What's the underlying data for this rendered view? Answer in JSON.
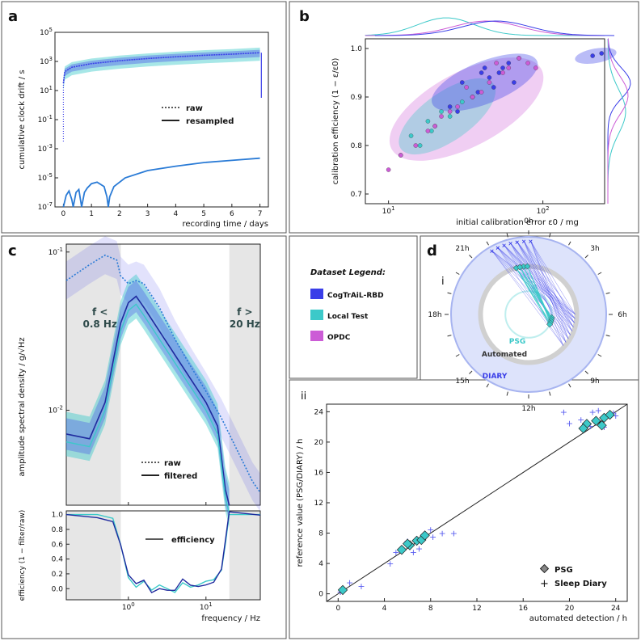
{
  "panels": {
    "a": {
      "label": "a"
    },
    "b": {
      "label": "b"
    },
    "c": {
      "label": "c"
    },
    "d": {
      "label": "d"
    }
  },
  "colors": {
    "cogtrail": "#3a3ee8",
    "local": "#3cc9c9",
    "opdc": "#cc5cd6",
    "navy": "#1f2a9e",
    "grey": "#999999"
  },
  "chart_data": [
    {
      "id": "a",
      "type": "line",
      "xlabel": "recording time / days",
      "ylabel": "cumulative clock drift / s",
      "xlim": [
        -0.3,
        7.3
      ],
      "ylim_log10": [
        -7,
        5
      ],
      "xticks": [
        "0",
        "1",
        "2",
        "3",
        "4",
        "5",
        "6",
        "7"
      ],
      "yticks": [
        "10^-7",
        "10^-5",
        "10^-3",
        "10^-1",
        "10^1",
        "10^3",
        "10^5"
      ],
      "legend": [
        {
          "style": "dotted",
          "label": "raw"
        },
        {
          "style": "solid",
          "label": "resampled"
        }
      ],
      "series": [
        {
          "name": "raw (drift envelope)",
          "x": [
            0,
            0.05,
            0.3,
            1,
            2,
            3,
            4,
            5,
            6,
            7
          ],
          "log10_y": [
            1.5,
            2.3,
            2.6,
            2.85,
            3.05,
            3.2,
            3.32,
            3.42,
            3.5,
            3.6
          ]
        },
        {
          "name": "resampled",
          "x": [
            0,
            0.1,
            0.2,
            0.3,
            0.35,
            0.45,
            0.55,
            0.65,
            0.75,
            0.85,
            1,
            1.2,
            1.45,
            1.55,
            1.6,
            1.65,
            1.8,
            2.2,
            3,
            4,
            5,
            6,
            7
          ],
          "log10_y": [
            -7,
            -6.2,
            -5.9,
            -6.5,
            -7,
            -6,
            -5.8,
            -7,
            -6,
            -5.7,
            -5.4,
            -5.3,
            -5.6,
            -6.3,
            -7,
            -6.3,
            -5.6,
            -5.0,
            -4.5,
            -4.2,
            -3.95,
            -3.8,
            -3.65
          ]
        }
      ]
    },
    {
      "id": "b",
      "type": "scatter",
      "xlabel": "initial calibration error ε0 / mg",
      "ylabel": "calibration efficiency (1 − ε/ε0)",
      "xlim_log10": [
        0.85,
        2.4
      ],
      "ylim": [
        0.68,
        1.02
      ],
      "xticks": [
        "10^1",
        "10^2"
      ],
      "yticks": [
        "0.7",
        "0.8",
        "0.9",
        "1.0"
      ],
      "series": [
        {
          "name": "CogTrAiL-RBD",
          "points": [
            [
              30,
              0.93
            ],
            [
              40,
              0.95
            ],
            [
              55,
              0.96
            ],
            [
              35,
              0.9
            ],
            [
              48,
              0.92
            ],
            [
              60,
              0.97
            ],
            [
              25,
              0.88
            ],
            [
              45,
              0.94
            ],
            [
              70,
              0.98
            ],
            [
              38,
              0.91
            ],
            [
              52,
              0.95
            ],
            [
              28,
              0.87
            ],
            [
              210,
              0.985
            ],
            [
              240,
              0.99
            ],
            [
              42,
              0.96
            ],
            [
              65,
              0.93
            ]
          ]
        },
        {
          "name": "Local Test",
          "points": [
            [
              14,
              0.82
            ],
            [
              18,
              0.85
            ],
            [
              22,
              0.87
            ],
            [
              16,
              0.8
            ],
            [
              25,
              0.86
            ],
            [
              30,
              0.89
            ],
            [
              20,
              0.84
            ],
            [
              12,
              0.78
            ],
            [
              35,
              0.9
            ],
            [
              19,
              0.83
            ]
          ]
        },
        {
          "name": "OPDC",
          "points": [
            [
              12,
              0.78
            ],
            [
              15,
              0.8
            ],
            [
              20,
              0.84
            ],
            [
              25,
              0.87
            ],
            [
              35,
              0.9
            ],
            [
              45,
              0.93
            ],
            [
              60,
              0.96
            ],
            [
              80,
              0.97
            ],
            [
              10,
              0.75
            ],
            [
              18,
              0.83
            ],
            [
              28,
              0.88
            ],
            [
              40,
              0.91
            ],
            [
              55,
              0.95
            ],
            [
              70,
              0.98
            ],
            [
              22,
              0.86
            ],
            [
              32,
              0.92
            ],
            [
              90,
              0.96
            ],
            [
              50,
              0.97
            ]
          ]
        }
      ]
    },
    {
      "id": "c",
      "type": "line",
      "xlabel": "frequency / Hz",
      "ylabel": "amplitude spectral density / g/√Hz",
      "ylabel_bottom": "efficiency (1 − filter/raw)",
      "xlim_log10": [
        -0.8,
        1.7
      ],
      "ylim_log10": [
        -2.6,
        -0.95
      ],
      "xticks": [
        "10^0",
        "10^1"
      ],
      "yticks": [
        "10^-2",
        "10^-1"
      ],
      "bottom_yticks": [
        "0.0",
        "0.2",
        "0.4",
        "0.6",
        "0.8",
        "1.0"
      ],
      "bands": [
        {
          "label": "f <\n0.8 Hz",
          "side": "low",
          "value": 0.8
        },
        {
          "label": "f >\n20 Hz",
          "side": "high",
          "value": 20
        }
      ],
      "legend": [
        {
          "style": "dotted",
          "label": "raw"
        },
        {
          "style": "solid",
          "label": "filtered"
        }
      ],
      "legend_bottom": [
        {
          "style": "solid",
          "label": "efficiency"
        }
      ],
      "series": [
        {
          "name": "raw",
          "log10_f": [
            -0.8,
            -0.5,
            -0.3,
            -0.15,
            -0.1,
            0,
            0.1,
            0.2,
            0.4,
            0.6,
            0.8,
            1.0,
            1.2,
            1.4,
            1.6,
            1.7
          ],
          "log10_asd": [
            -1.18,
            -1.08,
            -1.02,
            -1.05,
            -1.15,
            -1.2,
            -1.18,
            -1.2,
            -1.35,
            -1.55,
            -1.72,
            -1.88,
            -2.05,
            -2.25,
            -2.45,
            -2.52
          ]
        },
        {
          "name": "filtered",
          "log10_f": [
            -0.8,
            -0.5,
            -0.3,
            -0.1,
            0,
            0.1,
            0.2,
            0.4,
            0.6,
            0.8,
            1.0,
            1.15,
            1.25,
            1.3
          ],
          "log10_asd": [
            -2.15,
            -2.18,
            -1.95,
            -1.45,
            -1.32,
            -1.28,
            -1.35,
            -1.5,
            -1.65,
            -1.8,
            -1.95,
            -2.1,
            -2.5,
            -2.6
          ]
        },
        {
          "name": "efficiency",
          "log10_f": [
            -0.8,
            -0.4,
            -0.2,
            -0.1,
            0,
            0.1,
            0.2,
            0.3,
            0.4,
            0.5,
            0.6,
            0.7,
            0.8,
            0.9,
            1.0,
            1.1,
            1.2,
            1.25,
            1.3,
            1.7
          ],
          "eff": [
            1,
            1,
            0.95,
            0.6,
            0.15,
            0.02,
            0.1,
            -0.02,
            0.05,
            0,
            -0.05,
            0.08,
            0.02,
            0.05,
            0.1,
            0.12,
            0.25,
            0.6,
            1,
            1
          ]
        }
      ]
    },
    {
      "id": "d-ii",
      "type": "scatter",
      "xlabel": "automated detection / h",
      "ylabel": "reference value (PSG/DIARY) / h",
      "xlim": [
        -1,
        25
      ],
      "ylim": [
        -1,
        25
      ],
      "xticks": [
        "0",
        "4",
        "8",
        "12",
        "16",
        "20",
        "24"
      ],
      "yticks": [
        "0",
        "4",
        "8",
        "12",
        "16",
        "20",
        "24"
      ],
      "legend": [
        {
          "marker": "diamond",
          "label": "PSG"
        },
        {
          "marker": "plus",
          "label": "Sleep Diary"
        }
      ],
      "series": [
        {
          "name": "PSG",
          "points": [
            [
              0.4,
              0.5
            ],
            [
              5.5,
              5.8
            ],
            [
              6.2,
              6.4
            ],
            [
              6.8,
              7.0
            ],
            [
              7.2,
              7.1
            ],
            [
              7.5,
              7.7
            ],
            [
              6.0,
              6.6
            ],
            [
              21.5,
              22.4
            ],
            [
              22.3,
              22.8
            ],
            [
              23.0,
              23.2
            ],
            [
              23.5,
              23.6
            ],
            [
              22.8,
              22.2
            ],
            [
              21.2,
              21.8
            ]
          ]
        },
        {
          "name": "Sleep Diary",
          "points": [
            [
              0.2,
              0.3
            ],
            [
              1,
              1.5
            ],
            [
              2,
              1
            ],
            [
              4.5,
              4
            ],
            [
              5,
              5.5
            ],
            [
              6,
              7
            ],
            [
              7,
              6
            ],
            [
              8,
              8.5
            ],
            [
              9,
              8
            ],
            [
              6.5,
              5.5
            ],
            [
              8.2,
              7.5
            ],
            [
              10,
              8
            ],
            [
              20,
              22.5
            ],
            [
              21,
              23
            ],
            [
              22,
              24
            ],
            [
              23,
              22
            ],
            [
              24,
              23.5
            ],
            [
              22.5,
              24.2
            ],
            [
              21.8,
              22.1
            ],
            [
              23.8,
              23.9
            ],
            [
              19.5,
              24
            ]
          ]
        }
      ]
    },
    {
      "id": "d-i",
      "type": "polar",
      "hours": [
        "0h",
        "3h",
        "6h",
        "9h",
        "12h",
        "15h",
        "18h",
        "21h"
      ],
      "rings": [
        "PSG",
        "Automated",
        "DIARY"
      ]
    }
  ],
  "panel_b_colors": {},
  "legend_box": {
    "title": "Dataset Legend:",
    "items": [
      {
        "label": "CogTrAiL-RBD",
        "color": "#3a3ee8"
      },
      {
        "label": "Local Test",
        "color": "#3cc9c9"
      },
      {
        "label": "OPDC",
        "color": "#cc5cd6"
      }
    ]
  },
  "subpanels": {
    "i": "i",
    "ii": "ii"
  }
}
